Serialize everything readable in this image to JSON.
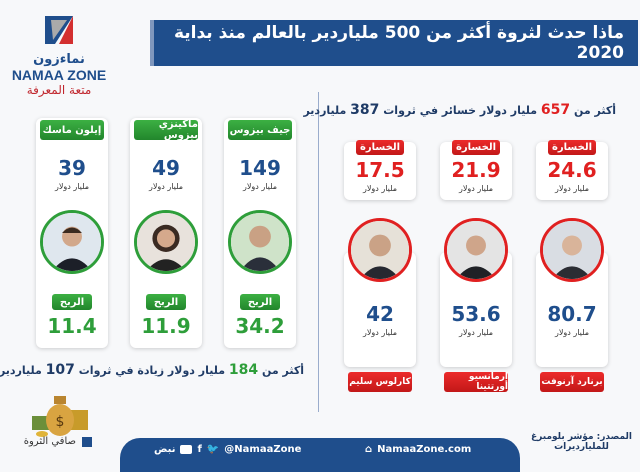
{
  "title": "ماذا حدث لثروة أكثر من 500 ملياردير بالعالم منذ بداية 2020",
  "logo": {
    "arabic": "نماءزون",
    "english": "NAMAA ZONE",
    "tagline": "متعة المعرفة"
  },
  "colors": {
    "primary": "#1f4e8c",
    "gain": "#2e9e3a",
    "loss": "#e02020"
  },
  "gains": {
    "summary": {
      "prefix": "أكثر من",
      "amount": "184",
      "middle": "مليار دولار زيادة في ثروات",
      "count": "107",
      "suffix": "ملياردير"
    },
    "people": [
      {
        "name": "جيف بيزوس",
        "net_worth": "149",
        "unit": "مليار دولار",
        "change_label": "الربح",
        "change": "34.2"
      },
      {
        "name": "ماكينزي بيزوس",
        "net_worth": "49",
        "unit": "مليار دولار",
        "change_label": "الربح",
        "change": "11.9"
      },
      {
        "name": "إيلون ماسك",
        "net_worth": "39",
        "unit": "مليار دولار",
        "change_label": "الربح",
        "change": "11.4"
      }
    ]
  },
  "losses": {
    "summary": {
      "prefix": "أكثر من",
      "amount": "657",
      "middle": "مليار دولار خسائر في ثروات",
      "count": "387",
      "suffix": "ملياردير"
    },
    "people": [
      {
        "name": "برنارد آرنوفت",
        "net_worth": "80.7",
        "unit": "مليار دولار",
        "change_label": "الخسارة",
        "change": "24.6"
      },
      {
        "name": "ارمانسيو أورتتينا",
        "net_worth": "53.6",
        "unit": "مليار دولار",
        "change_label": "الخسارة",
        "change": "21.9"
      },
      {
        "name": "كارلوس سليم",
        "net_worth": "42",
        "unit": "مليار دولار",
        "change_label": "الخسارة",
        "change": "17.5"
      }
    ]
  },
  "legend": {
    "label": "صافي الثروة"
  },
  "source": {
    "line1": "المصدر: مؤشر بلومبرغ",
    "line2": "للمليارديرات"
  },
  "footer": {
    "website": "NamaaZone.com",
    "handle": "@NamaaZone",
    "nabd": "نبض"
  }
}
